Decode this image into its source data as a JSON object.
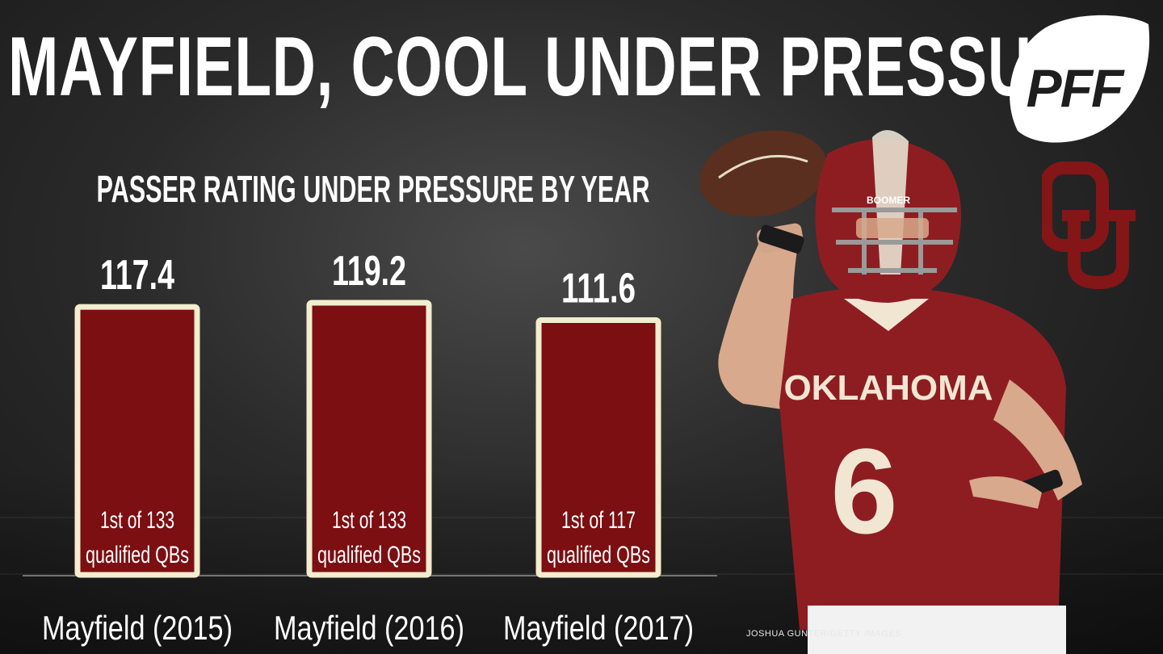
{
  "title": "MAYFIELD, COOL UNDER PRESSURE",
  "logo_text": "PFF",
  "ou_logo_text": "OU",
  "photo": {
    "jersey_text": "OKLAHOMA",
    "jersey_number": "6",
    "helmet_text": "BOOMER",
    "credit": "JOSHUA GUNTER/GETTY IMAGES"
  },
  "colors": {
    "bar_fill": "#7b0f12",
    "bar_border": "#f3edcf",
    "crimson": "#841617",
    "text": "#ffffff"
  },
  "chart_data": {
    "type": "bar",
    "title": "PASSER RATING UNDER PRESSURE BY YEAR",
    "categories": [
      "Mayfield (2015)",
      "Mayfield (2016)",
      "Mayfield (2017)"
    ],
    "values": [
      117.4,
      119.2,
      111.6
    ],
    "value_labels": [
      "117.4",
      "119.2",
      "111.6"
    ],
    "annotations": [
      [
        "1st of 133",
        "qualified QBs"
      ],
      [
        "1st of 133",
        "qualified QBs"
      ],
      [
        "1st of 117",
        "qualified QBs"
      ]
    ],
    "xlabel": "",
    "ylabel": "",
    "ylim": [
      0,
      120
    ],
    "grid": false,
    "legend": "none"
  }
}
